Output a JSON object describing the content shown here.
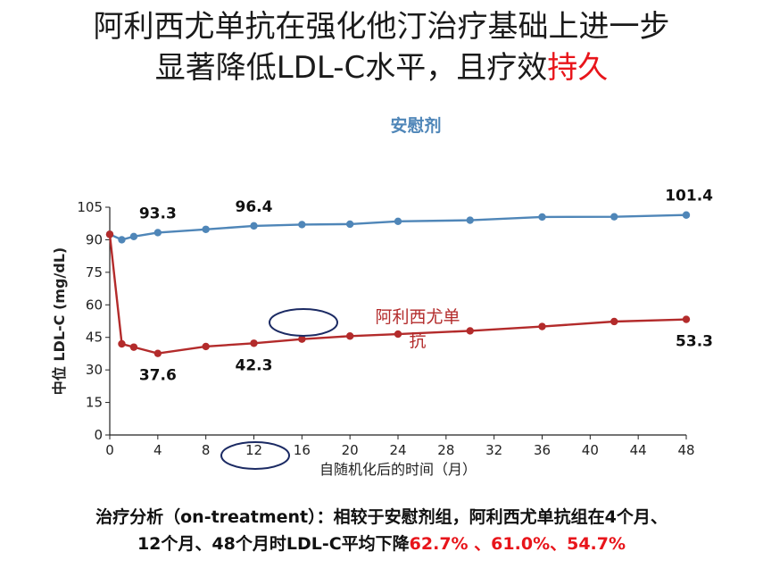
{
  "title": {
    "line1": "阿利西尤单抗在强化他汀治疗基础上进一步",
    "line2_main": "显著降低LDL-C水平，且疗效",
    "line2_highlight": "持久"
  },
  "colors": {
    "placebo": "#4f86b8",
    "alirocumab": "#b32b2b",
    "highlight": "#e8151b",
    "circle": "#1b2a63"
  },
  "chart_data": {
    "type": "line",
    "xlabel": "自随机化后的时间（月）",
    "ylabel": "中位 LDL-C (mg/dL)",
    "xlim": [
      0,
      48
    ],
    "ylim": [
      0,
      105
    ],
    "x_ticks": [
      0,
      4,
      8,
      12,
      16,
      20,
      24,
      28,
      32,
      36,
      40,
      44,
      48
    ],
    "y_ticks": [
      0,
      15,
      30,
      45,
      60,
      75,
      90,
      105
    ],
    "series": [
      {
        "name": "安慰剂",
        "x": [
          0,
          1,
          2,
          4,
          8,
          12,
          16,
          20,
          24,
          30,
          36,
          42,
          48
        ],
        "y": [
          92.5,
          90.0,
          91.5,
          93.3,
          94.8,
          96.4,
          97.0,
          97.2,
          98.5,
          99.0,
          100.5,
          100.6,
          101.4
        ]
      },
      {
        "name": "阿利西尤单抗",
        "x": [
          0,
          1,
          2,
          4,
          8,
          12,
          16,
          20,
          24,
          30,
          36,
          42,
          48
        ],
        "y": [
          92.5,
          42.0,
          40.5,
          37.6,
          40.8,
          42.3,
          44.2,
          45.6,
          46.5,
          48.0,
          50.0,
          52.3,
          53.3
        ]
      }
    ],
    "data_labels": [
      {
        "series": 0,
        "index": 3,
        "text": "93.3"
      },
      {
        "series": 0,
        "index": 5,
        "text": "96.4"
      },
      {
        "series": 0,
        "index": 12,
        "text": "101.4"
      },
      {
        "series": 1,
        "index": 3,
        "text": "37.6"
      },
      {
        "series": 1,
        "index": 5,
        "text": "42.3"
      },
      {
        "series": 1,
        "index": 12,
        "text": "53.3"
      }
    ],
    "series_labels": {
      "placebo": "安慰剂",
      "alirocumab_line1": "阿利西尤单",
      "alirocumab_line2": "抗"
    }
  },
  "footer": {
    "line1": "治疗分析（on-treatment）：相较于安慰剂组，阿利西尤单抗组在4个月、",
    "line2_main": "12个月、48个月时LDL-C平均下降",
    "line2_highlight": "62.7% 、61.0%、54.7%"
  }
}
